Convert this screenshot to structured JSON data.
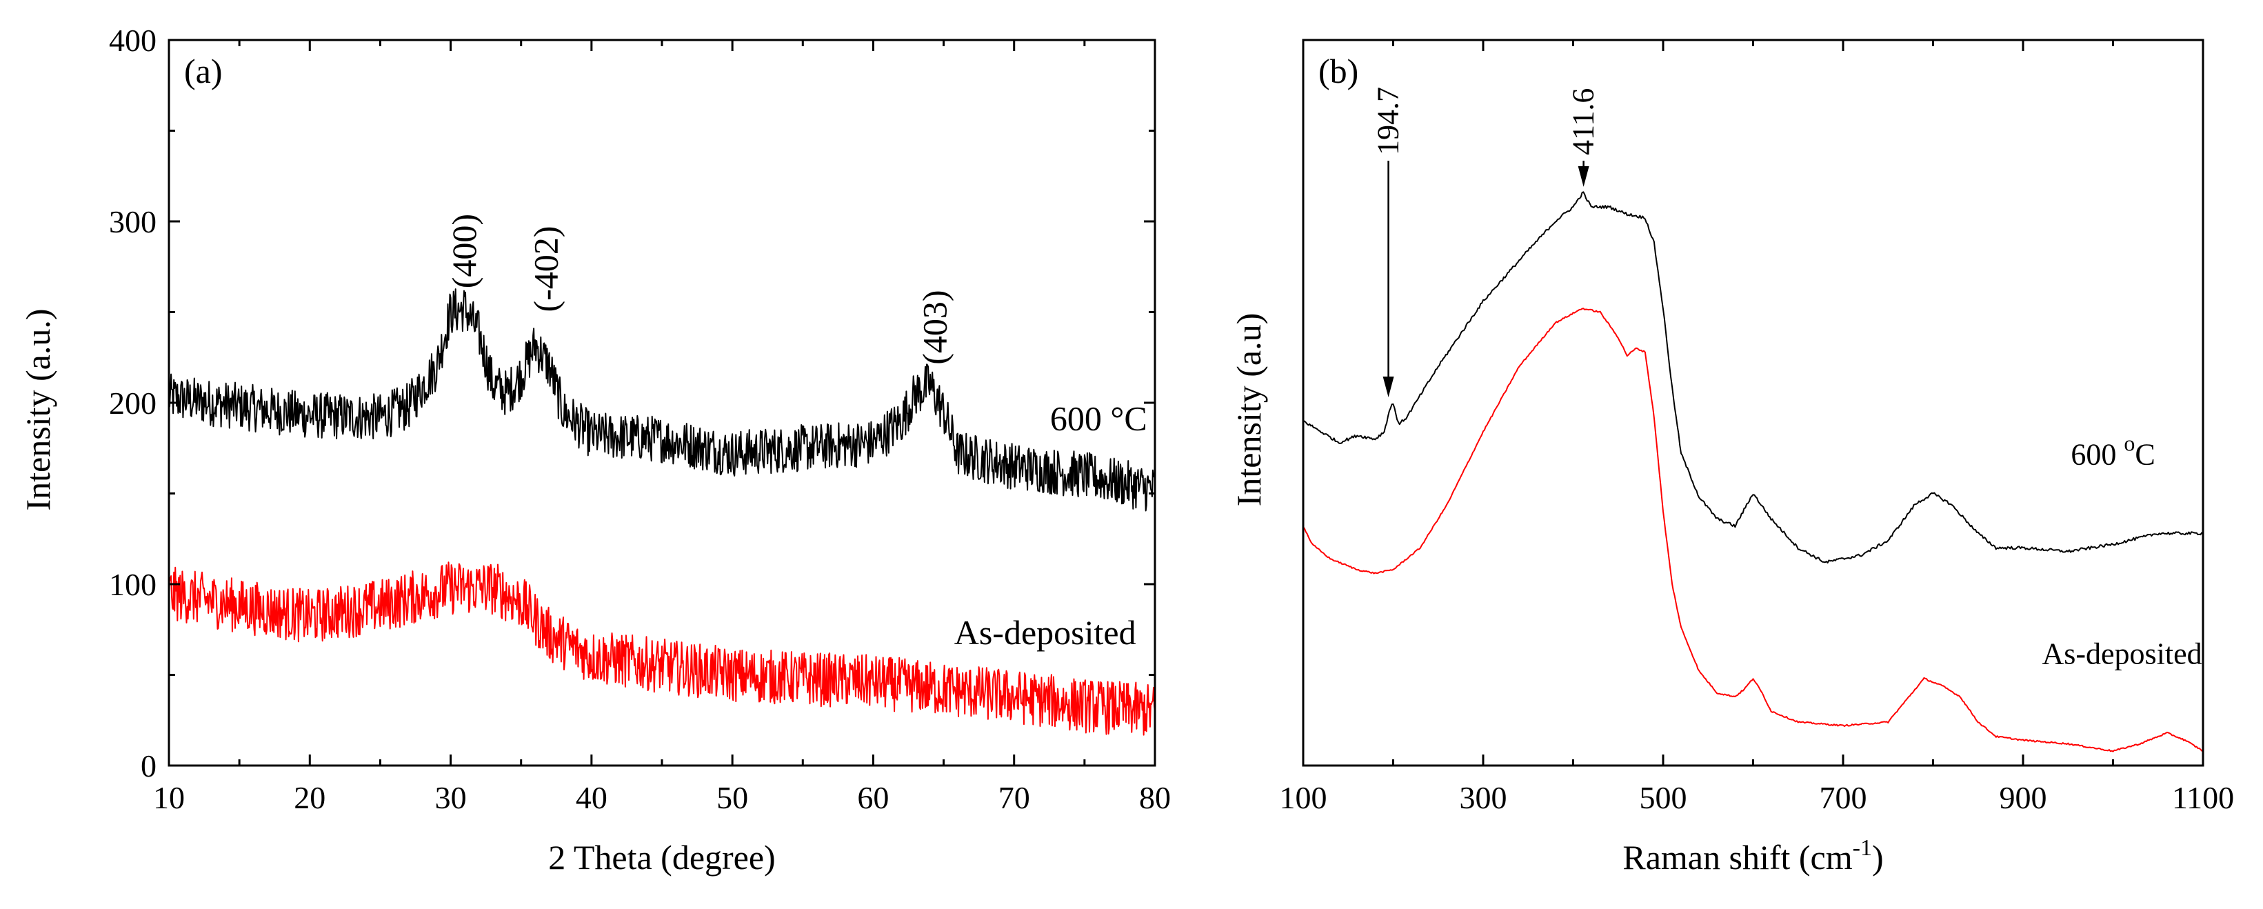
{
  "colors": {
    "black": "#000000",
    "red": "#ff0000"
  },
  "chart_data": [
    {
      "type": "line",
      "panel_label": "(a)",
      "xlabel": "2 Theta (degree)",
      "ylabel": "Intensity (a.u.)",
      "xlim": [
        10,
        80
      ],
      "ylim": [
        0,
        400
      ],
      "xticks": [
        10,
        20,
        30,
        40,
        50,
        60,
        70,
        80
      ],
      "yticks": [
        0,
        100,
        200,
        300,
        400
      ],
      "series": [
        {
          "name": "600 °C",
          "color": "#000000",
          "noise": 26,
          "x": [
            10,
            15,
            20,
            25,
            27,
            29,
            30,
            31,
            32,
            33,
            34,
            35,
            36,
            37,
            38,
            40,
            45,
            50,
            55,
            60,
            62,
            63,
            64,
            65,
            66,
            70,
            75,
            80
          ],
          "y": [
            203,
            198,
            193,
            192,
            198,
            220,
            250,
            252,
            238,
            210,
            205,
            215,
            232,
            220,
            195,
            182,
            180,
            172,
            175,
            178,
            190,
            205,
            210,
            195,
            172,
            165,
            160,
            152
          ]
        },
        {
          "name": "As-deposited",
          "color": "#ff0000",
          "noise": 30,
          "x": [
            10,
            15,
            20,
            25,
            30,
            33,
            35,
            37,
            40,
            45,
            50,
            55,
            60,
            65,
            70,
            75,
            80
          ],
          "y": [
            95,
            88,
            82,
            88,
            98,
            98,
            90,
            72,
            60,
            55,
            50,
            48,
            46,
            42,
            38,
            33,
            30
          ]
        }
      ],
      "annotations": [
        {
          "text": "(400)",
          "x": 31,
          "y": 263
        },
        {
          "text": "(-402)",
          "x": 36.8,
          "y": 250
        },
        {
          "text": "(403)",
          "x": 64.4,
          "y": 221
        },
        {
          "text": "600 °C",
          "x": 76,
          "y": 185
        },
        {
          "text": "As-deposited",
          "x": 72.2,
          "y": 67
        }
      ]
    },
    {
      "type": "line",
      "panel_label": "(b)",
      "xlabel": "Raman shift",
      "xlabel_unit": "(cm",
      "xlabel_sup": "-1",
      "xlabel_close": ")",
      "ylabel": "Intensity (a.u)",
      "xlim": [
        100,
        1100
      ],
      "ylim": [
        0,
        1
      ],
      "xticks": [
        100,
        300,
        500,
        700,
        900,
        1100
      ],
      "yticks": [],
      "series": [
        {
          "name": "600 °C",
          "color": "#000000",
          "noise": 0.004,
          "x": [
            100,
            120,
            140,
            160,
            180,
            190,
            196,
            200,
            206,
            215,
            250,
            300,
            350,
            380,
            400,
            411,
            420,
            440,
            460,
            480,
            490,
            500,
            510,
            520,
            540,
            560,
            580,
            600,
            620,
            650,
            680,
            700,
            720,
            750,
            780,
            800,
            820,
            850,
            870,
            900,
            950,
            1000,
            1050,
            1100
          ],
          "y": [
            0.475,
            0.46,
            0.445,
            0.455,
            0.45,
            0.46,
            0.49,
            0.5,
            0.47,
            0.48,
            0.55,
            0.64,
            0.71,
            0.75,
            0.77,
            0.79,
            0.77,
            0.77,
            0.76,
            0.755,
            0.72,
            0.63,
            0.52,
            0.43,
            0.37,
            0.34,
            0.33,
            0.375,
            0.34,
            0.3,
            0.28,
            0.285,
            0.29,
            0.31,
            0.36,
            0.375,
            0.36,
            0.32,
            0.3,
            0.3,
            0.295,
            0.305,
            0.32,
            0.32
          ]
        },
        {
          "name": "As-deposited",
          "color": "#ff0000",
          "noise": 0.002,
          "x": [
            100,
            110,
            130,
            160,
            180,
            200,
            230,
            260,
            300,
            340,
            380,
            410,
            430,
            450,
            460,
            470,
            480,
            490,
            500,
            510,
            520,
            540,
            560,
            580,
            590,
            600,
            610,
            620,
            650,
            700,
            750,
            770,
            790,
            810,
            830,
            850,
            870,
            900,
            950,
            1000,
            1030,
            1060,
            1080,
            1100
          ],
          "y": [
            0.33,
            0.305,
            0.285,
            0.27,
            0.265,
            0.27,
            0.3,
            0.36,
            0.46,
            0.55,
            0.61,
            0.63,
            0.625,
            0.59,
            0.565,
            0.575,
            0.57,
            0.48,
            0.35,
            0.25,
            0.19,
            0.13,
            0.1,
            0.095,
            0.105,
            0.12,
            0.1,
            0.075,
            0.06,
            0.055,
            0.06,
            0.09,
            0.12,
            0.11,
            0.095,
            0.06,
            0.04,
            0.035,
            0.03,
            0.02,
            0.03,
            0.045,
            0.035,
            0.02
          ]
        }
      ],
      "peak_markers": [
        {
          "text": "194.7",
          "x": 194.7,
          "y": 0.5
        },
        {
          "text": "411.6",
          "x": 411.6,
          "y": 0.79
        }
      ],
      "annotations": [
        {
          "text": "600 ",
          "sup": "o",
          "tail": "C",
          "x": 1000,
          "y": 0.415
        },
        {
          "text": "As-deposited",
          "x": 1010,
          "y": 0.14
        }
      ]
    }
  ]
}
